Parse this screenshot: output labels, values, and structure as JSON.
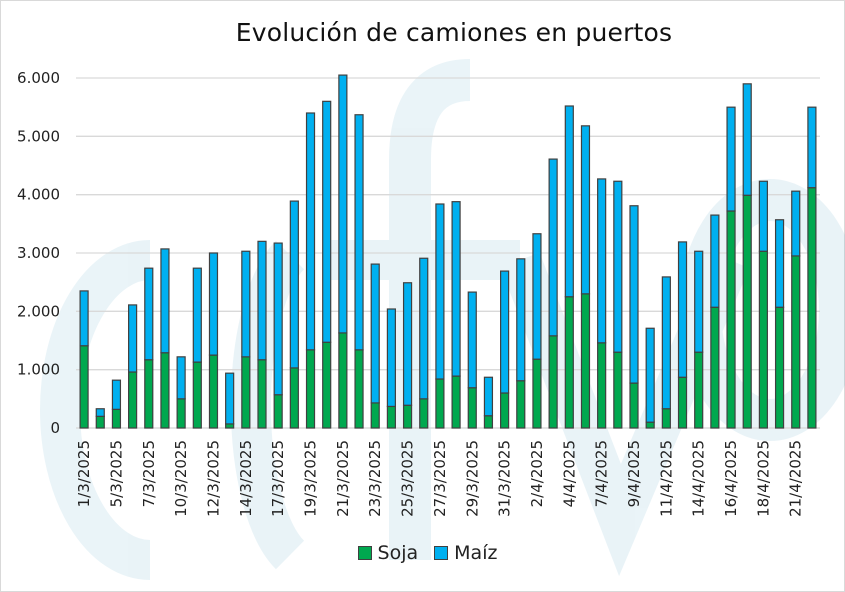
{
  "chart_data": {
    "type": "bar",
    "stacked": true,
    "title": "Evolución de camiones en puertos",
    "xlabel": "",
    "ylabel": "",
    "ylim": [
      0,
      6000
    ],
    "yticks": [
      0,
      1000,
      2000,
      3000,
      4000,
      5000,
      6000
    ],
    "ytick_labels": [
      "0",
      "1.000",
      "2.000",
      "3.000",
      "4.000",
      "5.000",
      "6.000"
    ],
    "grid": true,
    "legend_position": "bottom",
    "categories": [
      "1/3/2025",
      "",
      "5/3/2025",
      "",
      "7/3/2025",
      "",
      "10/3/2025",
      "",
      "12/3/2025",
      "",
      "14/3/2025",
      "",
      "17/3/2025",
      "",
      "19/3/2025",
      "",
      "21/3/2025",
      "",
      "23/3/2025",
      "",
      "25/3/2025",
      "",
      "27/3/2025",
      "",
      "29/3/2025",
      "",
      "31/3/2025",
      "",
      "2/4/2025",
      "",
      "4/4/2025",
      "",
      "7/4/2025",
      "",
      "9/4/2025",
      "",
      "11/4/2025",
      "",
      "14/4/2025",
      "",
      "16/4/2025",
      "",
      "18/4/2025",
      "",
      "21/4/2025",
      ""
    ],
    "series": [
      {
        "name": "Soja",
        "color": "#00a84f",
        "values": [
          1410,
          200,
          320,
          960,
          1170,
          1290,
          500,
          1130,
          1250,
          70,
          1220,
          1170,
          570,
          1030,
          1340,
          1470,
          1630,
          1340,
          430,
          370,
          390,
          500,
          840,
          890,
          690,
          210,
          600,
          810,
          1180,
          1580,
          2250,
          2300,
          1460,
          1300,
          770,
          100,
          330,
          870,
          1300,
          2070,
          3720,
          3990,
          3030,
          2070,
          2950,
          4120
        ]
      },
      {
        "name": "Maíz",
        "color": "#00b0f0",
        "values": [
          940,
          130,
          500,
          1150,
          1570,
          1780,
          720,
          1610,
          1750,
          870,
          1810,
          2030,
          2600,
          2860,
          4060,
          4130,
          4420,
          4030,
          2380,
          1670,
          2100,
          2410,
          3000,
          2990,
          1640,
          660,
          2090,
          2090,
          2150,
          3030,
          3270,
          2880,
          2810,
          2930,
          3040,
          1610,
          2260,
          2320,
          1730,
          1580,
          1780,
          1910,
          1200,
          1500,
          1110,
          1380
        ]
      }
    ]
  }
}
